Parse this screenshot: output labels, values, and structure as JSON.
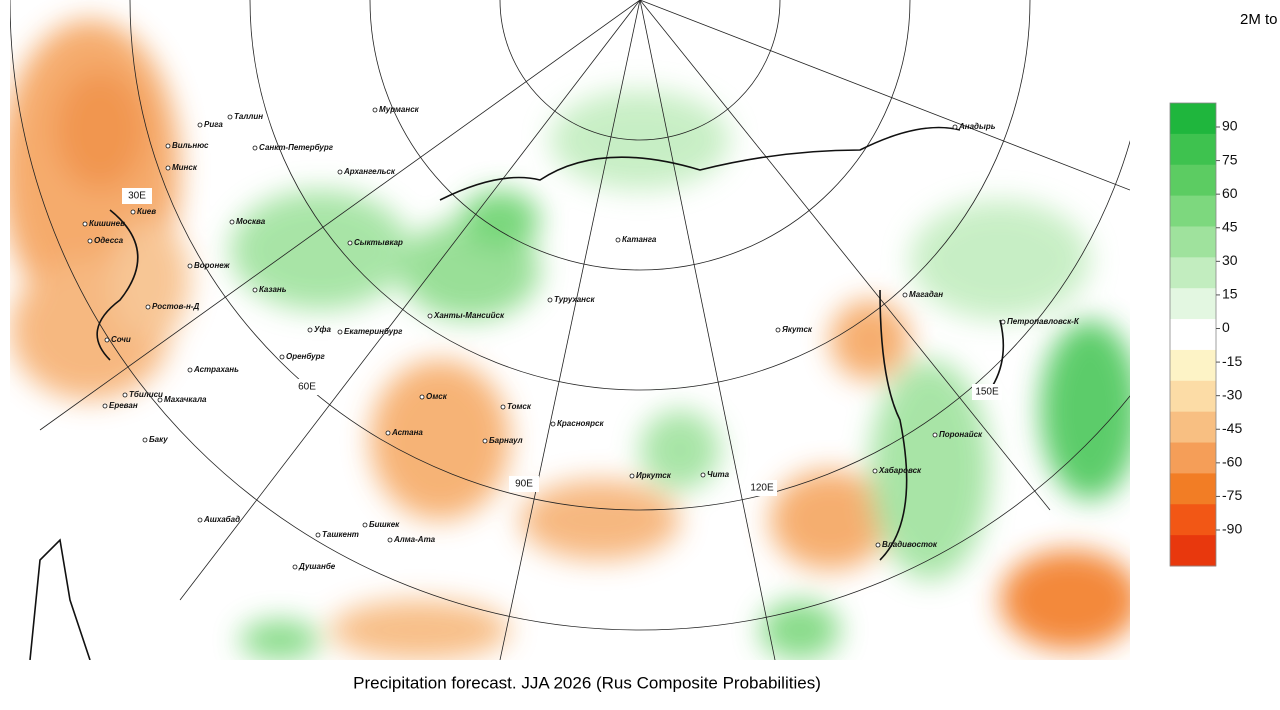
{
  "header": {
    "corner_text": "2M to"
  },
  "map": {
    "cities": [
      "Мурманск",
      "Рига",
      "Таллин",
      "Санкт-Петербург",
      "Архангельск",
      "Вильнюс",
      "Минск",
      "Киев",
      "Москва",
      "Сыктывкар",
      "Кишинев",
      "Одесса",
      "Воронеж",
      "Казань",
      "Ростов-н-Д",
      "Сочи",
      "Уфа",
      "Екатеринбург",
      "Ханты-Мансийск",
      "Туруханск",
      "Катанга",
      "Якутск",
      "Магадан",
      "Петропавловск-К",
      "Оренбург",
      "Астрахань",
      "Тбилиси",
      "Махачкала",
      "Ереван",
      "Омск",
      "Томск",
      "Астана",
      "Барнаул",
      "Красноярск",
      "Баку",
      "Иркутск",
      "Чита",
      "Поронайск",
      "Хабаровск",
      "Ашхабад",
      "Бишкек",
      "Ташкент",
      "Алма-Ата",
      "Душанбе",
      "Владивосток",
      "Анадырь"
    ],
    "longitudes": [
      "30E",
      "60E",
      "90E",
      "120E",
      "150E"
    ],
    "caption": "Precipitation forecast. JJA 2026 (Rus Composite Probabilities)"
  },
  "colorbar": {
    "ticks": [
      90,
      75,
      60,
      45,
      30,
      15,
      0,
      -15,
      -30,
      -45,
      -60,
      -75,
      -90
    ],
    "colors": [
      "#1fb63d",
      "#3ec24f",
      "#5ccc62",
      "#7dd87e",
      "#9fe29d",
      "#c2edbf",
      "#e3f7e1",
      "#ffffff",
      "#fdf3c6",
      "#fcdca6",
      "#f8bf82",
      "#f59e58",
      "#f27d25",
      "#f25715",
      "#e8380d"
    ]
  }
}
